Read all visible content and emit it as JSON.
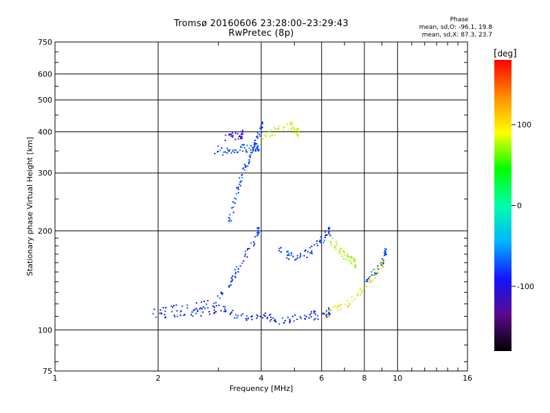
{
  "header": {
    "title": "Tromsø 20160606 23:28:00–23:29:43",
    "subtitle": "RwPretec (8p)"
  },
  "phase_info": {
    "title": "Phase",
    "line_o": "mean, sd,O: -96.1, 19.8",
    "line_x": "mean, sd,X:  87.3, 23.7"
  },
  "colorbar": {
    "unit": "deg",
    "tick_labels": [
      "100",
      "0",
      "-100"
    ],
    "colormap": "rainbow",
    "colors": [
      "#000000",
      "#5a0a8c",
      "#1414ff",
      "#00b4ff",
      "#00ffaa",
      "#00ff00",
      "#ffff00",
      "#ff8c00",
      "#ff0000"
    ]
  },
  "chart_data": {
    "type": "scatter",
    "title": "Tromsø 20160606 23:28:00–23:29:43",
    "subtitle": "RwPretec (8p)",
    "xlabel": "Frequency [MHz]",
    "ylabel": "Stationary phase Virtual Height [km]",
    "x_scale": "log",
    "y_scale": "log",
    "xlim": [
      1,
      16
    ],
    "ylim": [
      75,
      750
    ],
    "x_ticks": [
      1,
      2,
      4,
      6,
      8,
      10,
      16
    ],
    "x_tick_labels": [
      "1",
      "2",
      "4",
      "6",
      "8",
      "10",
      "16"
    ],
    "y_ticks": [
      75,
      100,
      200,
      300,
      400,
      500,
      600,
      750
    ],
    "y_tick_labels": [
      "75",
      "100",
      "200",
      "300",
      "400",
      "500",
      "600",
      "750"
    ],
    "grid": true,
    "color_range_deg": [
      -180,
      180
    ],
    "traces": [
      {
        "name": "",
        "f": [
          1.9,
          2.2,
          2.5,
          2.8,
          3.0,
          3.2,
          3.5,
          3.8,
          4.1,
          4.4,
          4.8,
          5.2,
          5.6,
          6.0,
          6.3
        ],
        "h": [
          113,
          112,
          113,
          115,
          117,
          113,
          111,
          110,
          110,
          108,
          108,
          109,
          111,
          112,
          114
        ],
        "phase": -110
      },
      {
        "name": "",
        "f": [
          2.0,
          2.3,
          2.6,
          2.9,
          3.1,
          3.3,
          3.5,
          3.7,
          3.9
        ],
        "h": [
          118,
          116,
          118,
          122,
          130,
          145,
          160,
          180,
          200
        ],
        "phase": -105
      },
      {
        "name": "",
        "f": [
          3.2,
          3.3,
          3.4,
          3.5,
          3.6,
          3.7,
          3.8,
          3.9,
          4.0
        ],
        "h": [
          210,
          240,
          270,
          300,
          320,
          340,
          360,
          390,
          420
        ],
        "phase": -100
      },
      {
        "name": "",
        "f": [
          2.9,
          3.1,
          3.3,
          3.5,
          3.7,
          3.9
        ],
        "h": [
          355,
          352,
          355,
          358,
          360,
          362
        ],
        "phase": -95
      },
      {
        "name": "",
        "f": [
          3.1,
          3.3,
          3.5
        ],
        "h": [
          385,
          390,
          395
        ],
        "phase": -130
      },
      {
        "name": "",
        "f": [
          4.0,
          4.3,
          4.6,
          4.9,
          5.1
        ],
        "h": [
          380,
          400,
          410,
          420,
          400
        ],
        "phase": 95
      },
      {
        "name": "",
        "f": [
          4.5,
          4.8,
          5.1,
          5.4,
          5.7,
          6.0,
          6.3
        ],
        "h": [
          175,
          170,
          168,
          172,
          180,
          190,
          200
        ],
        "phase": -105
      },
      {
        "name": "",
        "f": [
          6.0,
          6.5,
          7.0,
          7.5,
          8.0,
          8.5,
          9.0
        ],
        "h": [
          112,
          115,
          118,
          125,
          135,
          148,
          160
        ],
        "phase": 100
      },
      {
        "name": "",
        "f": [
          6.3,
          6.6,
          6.9,
          7.2,
          7.5
        ],
        "h": [
          190,
          180,
          170,
          165,
          160
        ],
        "phase": 80
      },
      {
        "name": "",
        "f": [
          8.0,
          8.5,
          9.0,
          9.2
        ],
        "h": [
          140,
          150,
          160,
          175
        ],
        "phase": -95
      }
    ]
  }
}
